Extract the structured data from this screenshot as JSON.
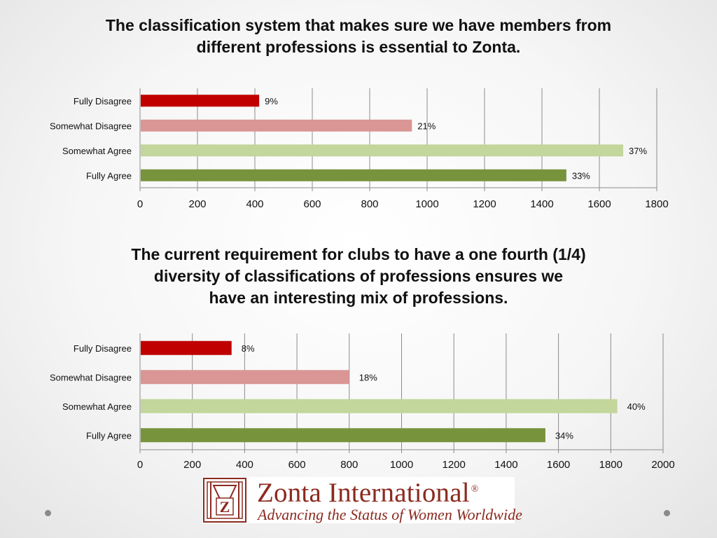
{
  "slide": {
    "title1_lines": [
      "The classification system that makes sure we have members from",
      "different professions is essential to Zonta."
    ],
    "title2_lines": [
      "The current requirement for clubs to have a one fourth (1/4)",
      "diversity of classifications of professions ensures we",
      "have an interesting mix of professions."
    ]
  },
  "logo": {
    "name": "Zonta International",
    "registered": "®",
    "tagline": "Advancing the Status of Women Worldwide",
    "emblem_letter": "Z",
    "color": "#8b2a1f"
  },
  "colors": {
    "Fully Disagree": "#c00000",
    "Somewhat Disagree": "#d99694",
    "Somewhat Agree": "#c3d69b",
    "Fully Agree": "#77933c"
  },
  "chart_data": [
    {
      "type": "bar",
      "orientation": "horizontal",
      "title": "The classification system that makes sure we have members from different professions is essential to Zonta.",
      "categories": [
        "Fully Disagree",
        "Somewhat Disagree",
        "Somewhat Agree",
        "Fully Agree"
      ],
      "values": [
        415,
        947,
        1683,
        1485
      ],
      "data_labels": [
        "9%",
        "21%",
        "37%",
        "33%"
      ],
      "xlim": [
        0,
        1800
      ],
      "ticks": [
        0,
        200,
        400,
        600,
        800,
        1000,
        1200,
        1400,
        1600,
        1800
      ],
      "grid": true,
      "legend": "none"
    },
    {
      "type": "bar",
      "orientation": "horizontal",
      "title": "The current requirement for clubs to have a one fourth (1/4) diversity of classifications of professions ensures we have an interesting mix of professions.",
      "categories": [
        "Fully Disagree",
        "Somewhat Disagree",
        "Somewhat Agree",
        "Fully Agree"
      ],
      "values": [
        350,
        800,
        1825,
        1550
      ],
      "data_labels": [
        "8%",
        "18%",
        "40%",
        "34%"
      ],
      "xlim": [
        0,
        2000
      ],
      "ticks": [
        0,
        200,
        400,
        600,
        800,
        1000,
        1200,
        1400,
        1600,
        1800,
        2000
      ],
      "grid": true,
      "legend": "none"
    }
  ]
}
